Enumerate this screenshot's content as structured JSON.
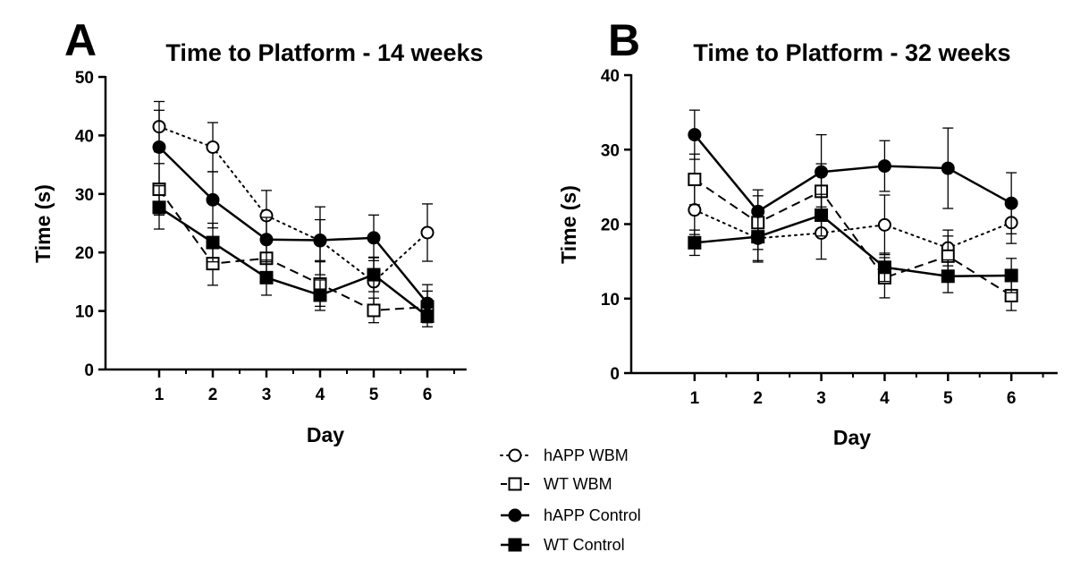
{
  "legend": {
    "position": "bottom-center",
    "items": [
      {
        "label": "hAPP WBM",
        "series_index": 0
      },
      {
        "label": "WT WBM",
        "series_index": 1
      },
      {
        "label": "hAPP Control",
        "series_index": 2
      },
      {
        "label": "WT Control",
        "series_index": 3
      }
    ]
  },
  "series_styles": [
    {
      "marker": "circle",
      "fill": "open",
      "line": "dotted",
      "color": "#000000"
    },
    {
      "marker": "square",
      "fill": "open",
      "line": "dashed",
      "color": "#000000"
    },
    {
      "marker": "circle",
      "fill": "filled",
      "line": "solid",
      "color": "#000000"
    },
    {
      "marker": "square",
      "fill": "filled",
      "line": "solid",
      "color": "#000000"
    }
  ],
  "chart_data": [
    {
      "type": "line",
      "panel": "A",
      "title": "Time to Platform - 14 weeks",
      "xlabel": "Day",
      "ylabel": "Time (s)",
      "x": [
        1,
        2,
        3,
        4,
        5,
        6
      ],
      "xlim": [
        0,
        7
      ],
      "ylim": [
        0,
        50
      ],
      "yticks": [
        0,
        10,
        20,
        30,
        40,
        50
      ],
      "grid": false,
      "series": [
        {
          "name": "hAPP WBM",
          "values": [
            41.5,
            38,
            26.3,
            22,
            15,
            23.4
          ],
          "errors": [
            4.3,
            4.2,
            4.3,
            5.8,
            4.2,
            4.9
          ]
        },
        {
          "name": "WT WBM",
          "values": [
            30.8,
            18.1,
            19,
            14.6,
            10.1,
            10.7
          ],
          "errors": [
            4.4,
            3.7,
            3.8,
            3.8,
            2.1,
            2.7
          ]
        },
        {
          "name": "hAPP Control",
          "values": [
            38,
            29,
            22.2,
            22.1,
            22.5,
            11.3
          ],
          "errors": [
            6.3,
            4.8,
            3.8,
            3.5,
            3.9,
            3.2
          ]
        },
        {
          "name": "WT Control",
          "values": [
            27.7,
            21.7,
            15.7,
            12.7,
            16.2,
            9.1
          ],
          "errors": [
            3.7,
            3.3,
            3.0,
            2.6,
            2.9,
            1.8
          ]
        }
      ]
    },
    {
      "type": "line",
      "panel": "B",
      "title": "Time to Platform - 32 weeks",
      "xlabel": "Day",
      "ylabel": "Time (s)",
      "x": [
        1,
        2,
        3,
        4,
        5,
        6
      ],
      "xlim": [
        0,
        7
      ],
      "ylim": [
        0,
        40
      ],
      "yticks": [
        0,
        10,
        20,
        30,
        40
      ],
      "grid": false,
      "series": [
        {
          "name": "hAPP WBM",
          "values": [
            21.9,
            18.1,
            18.8,
            19.9,
            16.8,
            20.2
          ],
          "errors": [
            3.3,
            3.2,
            3.5,
            4.0,
            2.4,
            2.8
          ]
        },
        {
          "name": "WT WBM",
          "values": [
            26,
            20.2,
            24.4,
            12.8,
            15.7,
            10.4
          ],
          "errors": [
            3.4,
            3.6,
            3.7,
            2.7,
            2.7,
            2.0
          ]
        },
        {
          "name": "hAPP Control",
          "values": [
            32,
            21.7,
            27,
            27.8,
            27.5,
            22.8
          ],
          "errors": [
            3.3,
            2.9,
            5.0,
            3.4,
            5.4,
            4.1
          ]
        },
        {
          "name": "WT Control",
          "values": [
            17.5,
            18.3,
            21.2,
            14.2,
            13,
            13.1
          ],
          "errors": [
            1.7,
            3.2,
            2.8,
            1.9,
            2.2,
            2.3
          ]
        }
      ]
    }
  ]
}
